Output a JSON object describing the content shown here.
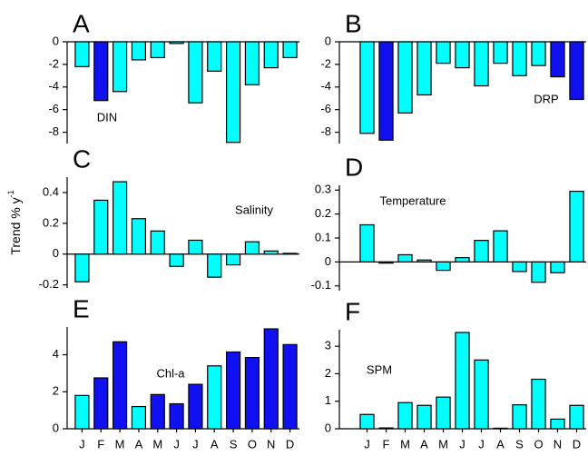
{
  "y_label": "Trend % y",
  "y_label_exponent": "-1",
  "chart_data": [
    {
      "type": "bar",
      "title": "A",
      "label": "DIN",
      "categories": [
        null,
        null,
        null,
        null,
        null,
        null,
        null,
        null,
        null,
        null,
        null,
        null
      ],
      "values": [
        -2.2,
        -5.2,
        -4.4,
        -1.6,
        -1.4,
        -0.15,
        -5.4,
        -2.6,
        -8.9,
        -3.8,
        -2.3,
        -1.4
      ],
      "colors": [
        "#00ffff",
        "#1010f0",
        "#00ffff",
        "#00ffff",
        "#00ffff",
        "#00ffff",
        "#00ffff",
        "#00ffff",
        "#00ffff",
        "#00ffff",
        "#00ffff",
        "#00ffff"
      ],
      "ylim": [
        -9,
        0
      ],
      "yticks": [
        0,
        -2,
        -4,
        -6,
        -8
      ]
    },
    {
      "type": "bar",
      "title": "B",
      "label": "DRP",
      "categories": [
        null,
        null,
        null,
        null,
        null,
        null,
        null,
        null,
        null,
        null,
        null,
        null
      ],
      "values": [
        -8.1,
        -8.7,
        -6.3,
        -4.7,
        -1.9,
        -2.3,
        -3.9,
        -1.9,
        -3.0,
        -2.1,
        -3.1,
        -5.1
      ],
      "colors": [
        "#00ffff",
        "#1010f0",
        "#00ffff",
        "#00ffff",
        "#00ffff",
        "#00ffff",
        "#00ffff",
        "#00ffff",
        "#00ffff",
        "#00ffff",
        "#1010f0",
        "#1010f0"
      ],
      "ylim": [
        -9,
        0
      ],
      "yticks": [
        0,
        -2,
        -4,
        -6,
        -8
      ]
    },
    {
      "type": "bar",
      "title": "C",
      "label": "Salinity",
      "categories": [
        null,
        null,
        null,
        null,
        null,
        null,
        null,
        null,
        null,
        null,
        null,
        null
      ],
      "values": [
        -0.18,
        0.35,
        0.47,
        0.23,
        0.15,
        -0.08,
        0.09,
        -0.15,
        -0.07,
        0.08,
        0.02,
        0.005
      ],
      "colors": [
        "#00ffff",
        "#00ffff",
        "#00ffff",
        "#00ffff",
        "#00ffff",
        "#00ffff",
        "#00ffff",
        "#00ffff",
        "#00ffff",
        "#00ffff",
        "#00ffff",
        "#00ffff"
      ],
      "ylim": [
        -0.22,
        0.5
      ],
      "yticks": [
        0.4,
        0.2,
        0,
        -0.2
      ]
    },
    {
      "type": "bar",
      "title": "D",
      "label": "Temperature",
      "categories": [
        null,
        null,
        null,
        null,
        null,
        null,
        null,
        null,
        null,
        null,
        null,
        null
      ],
      "values": [
        0.155,
        -0.005,
        0.03,
        0.008,
        -0.035,
        0.018,
        0.09,
        0.13,
        -0.04,
        -0.085,
        -0.045,
        0.295
      ],
      "colors": [
        "#00ffff",
        "#00ffff",
        "#00ffff",
        "#00ffff",
        "#00ffff",
        "#00ffff",
        "#00ffff",
        "#00ffff",
        "#00ffff",
        "#00ffff",
        "#00ffff",
        "#00ffff"
      ],
      "ylim": [
        -0.12,
        0.32
      ],
      "yticks": [
        0.3,
        0.2,
        0.1,
        0,
        -0.1
      ]
    },
    {
      "type": "bar",
      "title": "E",
      "label": "Chl-a",
      "categories": [
        "J",
        "F",
        "M",
        "A",
        "M",
        "J",
        "J",
        "A",
        "S",
        "O",
        "N",
        "D"
      ],
      "values": [
        1.8,
        2.75,
        4.7,
        1.2,
        1.85,
        1.35,
        2.4,
        3.4,
        4.15,
        3.85,
        5.4,
        4.55
      ],
      "colors": [
        "#00ffff",
        "#1010f0",
        "#1010f0",
        "#00ffff",
        "#1010f0",
        "#1010f0",
        "#1010f0",
        "#00ffff",
        "#1010f0",
        "#1010f0",
        "#1010f0",
        "#1010f0"
      ],
      "ylim": [
        0,
        5.5
      ],
      "yticks": [
        0,
        2,
        4
      ]
    },
    {
      "type": "bar",
      "title": "F",
      "label": "SPM",
      "categories": [
        "J",
        "F",
        "M",
        "A",
        "M",
        "J",
        "J",
        "A",
        "S",
        "O",
        "N",
        "D"
      ],
      "values": [
        0.52,
        0.03,
        0.95,
        0.85,
        1.15,
        3.5,
        2.5,
        0.02,
        0.87,
        1.8,
        0.35,
        0.85
      ],
      "colors": [
        "#00ffff",
        "#00ffff",
        "#00ffff",
        "#00ffff",
        "#00ffff",
        "#00ffff",
        "#00ffff",
        "#00ffff",
        "#00ffff",
        "#00ffff",
        "#00ffff",
        "#00ffff"
      ],
      "ylim": [
        0,
        3.6
      ],
      "yticks": [
        0,
        1,
        2,
        3
      ]
    }
  ]
}
